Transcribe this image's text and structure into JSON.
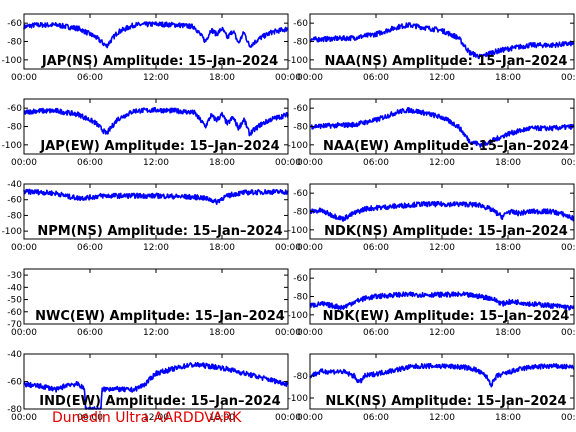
{
  "footer": "Dunedin Ultra AARDDVARK",
  "colors": {
    "trace": "#0000ff",
    "axis": "#000000",
    "footer": "#e00000",
    "background": "#ffffff"
  },
  "chart_data": [
    {
      "type": "line",
      "title": "JAP(NS) Amplitude: 15–Jan–2024",
      "xlabel": "",
      "ylabel": "",
      "xticks": [
        "00:00",
        "06:00",
        "12:00",
        "18:00",
        "00:00"
      ],
      "xlim": [
        0,
        24
      ],
      "ylim": [
        -110,
        -50
      ],
      "yticks": [
        -100,
        -80,
        -60
      ],
      "grid": false,
      "series": [
        {
          "x": [
            0,
            1,
            3,
            5,
            6.5,
            7.5,
            8.5,
            10,
            12,
            14,
            15.5,
            16.5,
            17,
            17.5,
            18,
            18.5,
            19,
            19.5,
            20,
            20.5,
            21.5,
            22.5,
            24
          ],
          "y": [
            -64,
            -62,
            -62,
            -66,
            -75,
            -85,
            -70,
            -62,
            -61,
            -62,
            -64,
            -80,
            -67,
            -72,
            -66,
            -76,
            -68,
            -82,
            -70,
            -85,
            -76,
            -70,
            -66
          ]
        }
      ]
    },
    {
      "type": "line",
      "title": "NAA(NS) Amplitude: 15–Jan–2024",
      "xlabel": "",
      "ylabel": "",
      "xticks": [
        "00:00",
        "06:00",
        "12:00",
        "18:00",
        "00:00"
      ],
      "xlim": [
        0,
        24
      ],
      "ylim": [
        -110,
        -50
      ],
      "yticks": [
        -100,
        -80,
        -60
      ],
      "grid": false,
      "series": [
        {
          "x": [
            0,
            2,
            4,
            6,
            8,
            9,
            10,
            12,
            13.5,
            14.5,
            15.5,
            16.5,
            18,
            20,
            22,
            24
          ],
          "y": [
            -78,
            -77,
            -76,
            -72,
            -64,
            -62,
            -64,
            -68,
            -76,
            -92,
            -97,
            -92,
            -88,
            -84,
            -84,
            -82
          ]
        }
      ]
    },
    {
      "type": "line",
      "title": "JAP(EW) Amplitude: 15–Jan–2024",
      "xlabel": "",
      "ylabel": "",
      "xticks": [
        "00:00",
        "06:00",
        "12:00",
        "18:00",
        "00:00"
      ],
      "xlim": [
        0,
        24
      ],
      "ylim": [
        -110,
        -50
      ],
      "yticks": [
        -100,
        -80,
        -60
      ],
      "grid": false,
      "series": [
        {
          "x": [
            0,
            1,
            3,
            5,
            6.5,
            7.5,
            8.5,
            10,
            12,
            14,
            15.5,
            16.5,
            17,
            17.5,
            18,
            18.5,
            19,
            19.5,
            20,
            20.5,
            21.5,
            22.5,
            24
          ],
          "y": [
            -65,
            -63,
            -63,
            -67,
            -76,
            -88,
            -72,
            -63,
            -62,
            -63,
            -65,
            -80,
            -68,
            -73,
            -67,
            -77,
            -70,
            -82,
            -72,
            -88,
            -78,
            -72,
            -67
          ]
        }
      ]
    },
    {
      "type": "line",
      "title": "NAA(EW) Amplitude: 15–Jan–2024",
      "xlabel": "",
      "ylabel": "",
      "xticks": [
        "00:00",
        "06:00",
        "12:00",
        "18:00",
        "00:00"
      ],
      "xlim": [
        0,
        24
      ],
      "ylim": [
        -110,
        -50
      ],
      "yticks": [
        -100,
        -80,
        -60
      ],
      "grid": false,
      "series": [
        {
          "x": [
            0,
            2,
            4,
            6,
            8,
            9,
            10,
            12,
            13.5,
            14.5,
            15.5,
            16.5,
            18,
            20,
            22,
            24
          ],
          "y": [
            -80,
            -79,
            -78,
            -73,
            -64,
            -62,
            -64,
            -70,
            -80,
            -96,
            -100,
            -96,
            -88,
            -82,
            -82,
            -80
          ]
        }
      ]
    },
    {
      "type": "line",
      "title": "NPM(NS) Amplitude: 15–Jan–2024",
      "xlabel": "",
      "ylabel": "",
      "xticks": [
        "00:00",
        "06:00",
        "12:00",
        "18:00",
        "00:00"
      ],
      "xlim": [
        0,
        24
      ],
      "ylim": [
        -110,
        -40
      ],
      "yticks": [
        -100,
        -80,
        -60,
        -40
      ],
      "grid": false,
      "series": [
        {
          "x": [
            0,
            1,
            3,
            4,
            5,
            6,
            7,
            8,
            10,
            12,
            14,
            16,
            17,
            17.5,
            18,
            19,
            20,
            22,
            24
          ],
          "y": [
            -50,
            -50,
            -52,
            -56,
            -58,
            -57,
            -55,
            -55,
            -55,
            -55,
            -56,
            -57,
            -60,
            -63,
            -58,
            -53,
            -51,
            -50,
            -50
          ]
        }
      ]
    },
    {
      "type": "line",
      "title": "NDK(NS) Amplitude: 15–Jan–2024",
      "xlabel": "",
      "ylabel": "",
      "xticks": [
        "00:00",
        "06:00",
        "12:00",
        "18:00",
        "00:00"
      ],
      "xlim": [
        0,
        24
      ],
      "ylim": [
        -110,
        -50
      ],
      "yticks": [
        -100,
        -80,
        -60
      ],
      "grid": false,
      "series": [
        {
          "x": [
            0,
            1,
            2,
            3,
            4,
            5,
            6,
            8,
            10,
            12,
            14,
            15.5,
            16.5,
            17.5,
            18,
            19,
            20,
            22,
            23,
            24
          ],
          "y": [
            -80,
            -79,
            -84,
            -88,
            -82,
            -77,
            -76,
            -74,
            -72,
            -72,
            -72,
            -73,
            -78,
            -86,
            -80,
            -82,
            -80,
            -80,
            -83,
            -88
          ]
        }
      ]
    },
    {
      "type": "line",
      "title": "NWC(EW) Amplitude: 15–Jan–2024",
      "xlabel": "",
      "ylabel": "",
      "xticks": [
        "00:00",
        "06:00",
        "12:00",
        "18:00",
        "00:00"
      ],
      "xlim": [
        0,
        24
      ],
      "ylim": [
        -70,
        -25
      ],
      "yticks": [
        -70,
        -60,
        -50,
        -40,
        -30
      ],
      "grid": false,
      "series": [
        {
          "x": [],
          "y": []
        }
      ]
    },
    {
      "type": "line",
      "title": "NDK(EW) Amplitude: 15–Jan–2024",
      "xlabel": "",
      "ylabel": "",
      "xticks": [
        "00:00",
        "06:00",
        "12:00",
        "18:00",
        "00:00"
      ],
      "xlim": [
        0,
        24
      ],
      "ylim": [
        -110,
        -50
      ],
      "yticks": [
        -100,
        -80,
        -60
      ],
      "grid": false,
      "series": [
        {
          "x": [
            0,
            1,
            2,
            3,
            4,
            5,
            6,
            8,
            10,
            12,
            14,
            15.5,
            16.5,
            17.5,
            18,
            19,
            20,
            22,
            23,
            24
          ],
          "y": [
            -90,
            -88,
            -90,
            -92,
            -86,
            -82,
            -80,
            -78,
            -78,
            -78,
            -78,
            -80,
            -82,
            -88,
            -86,
            -86,
            -88,
            -90,
            -91,
            -93
          ]
        }
      ]
    },
    {
      "type": "line",
      "title": "IND(EW) Amplitude: 15–Jan–2024",
      "xlabel": "",
      "ylabel": "",
      "xticks": [
        "00:00",
        "06:00",
        "12:00",
        "18:00",
        "00:00"
      ],
      "xlim": [
        0,
        24
      ],
      "ylim": [
        -80,
        -40
      ],
      "yticks": [
        -80,
        -60,
        -40
      ],
      "grid": false,
      "series": [
        {
          "x": [
            0,
            1,
            2,
            3,
            4,
            5,
            5.5,
            5.6,
            7,
            7.1,
            8,
            9,
            10,
            11,
            12,
            13,
            14,
            15,
            16,
            17,
            18,
            19,
            20,
            21,
            22,
            23,
            24
          ],
          "y": [
            -62,
            -63,
            -64,
            -66,
            -62,
            -62,
            -66,
            -80,
            -80,
            -66,
            -65,
            -66,
            -66,
            -62,
            -54,
            -52,
            -50,
            -48,
            -48,
            -49,
            -50,
            -52,
            -54,
            -56,
            -58,
            -60,
            -62
          ]
        }
      ]
    },
    {
      "type": "line",
      "title": "NLK(NS) Amplitude: 15–Jan–2024",
      "xlabel": "",
      "ylabel": "",
      "xticks": [
        "00:00",
        "06:00",
        "12:00",
        "18:00",
        "00:00"
      ],
      "xlim": [
        0,
        24
      ],
      "ylim": [
        -110,
        -60
      ],
      "yticks": [
        -100,
        -80
      ],
      "grid": false,
      "series": [
        {
          "x": [
            0,
            0.5,
            1,
            2,
            3,
            4,
            4.5,
            5,
            6,
            7,
            8,
            9,
            10,
            12,
            14,
            15,
            16,
            16.5,
            17,
            18,
            19,
            20,
            22,
            24
          ],
          "y": [
            -80,
            -78,
            -76,
            -76,
            -76,
            -80,
            -86,
            -80,
            -78,
            -76,
            -74,
            -72,
            -71,
            -71,
            -72,
            -74,
            -80,
            -88,
            -80,
            -77,
            -74,
            -72,
            -71,
            -72
          ]
        }
      ]
    }
  ]
}
